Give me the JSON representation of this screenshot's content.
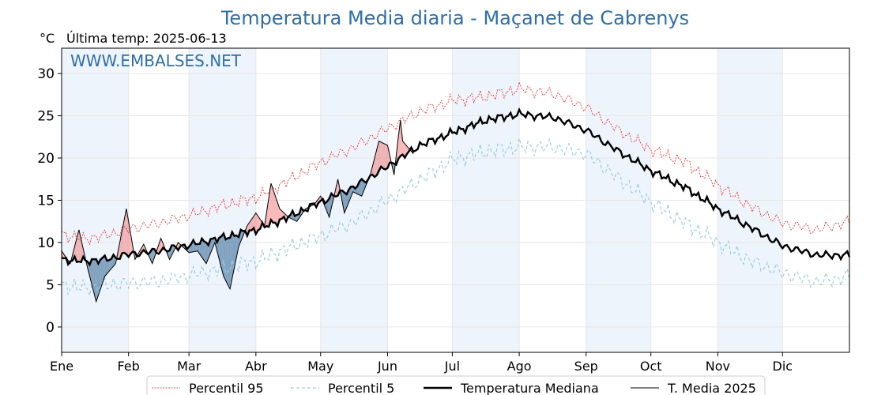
{
  "chart_data": {
    "type": "line",
    "title": "Temperatura Media diaria - Maçanet de Cabrenys",
    "unit_label": "°C",
    "subtitle": "Última temp: 2025-06-13",
    "watermark": "WWW.EMBALSES.NET",
    "ylim": [
      -3,
      33
    ],
    "xlim": [
      0,
      365
    ],
    "yticks": [
      0,
      5,
      10,
      15,
      20,
      25,
      30
    ],
    "months": [
      {
        "label": "Ene",
        "day": 0
      },
      {
        "label": "Feb",
        "day": 31
      },
      {
        "label": "Mar",
        "day": 59
      },
      {
        "label": "Abr",
        "day": 90
      },
      {
        "label": "May",
        "day": 120
      },
      {
        "label": "Jun",
        "day": 151
      },
      {
        "label": "Jul",
        "day": 181
      },
      {
        "label": "Ago",
        "day": 212
      },
      {
        "label": "Sep",
        "day": 243
      },
      {
        "label": "Oct",
        "day": 273
      },
      {
        "label": "Nov",
        "day": 304
      },
      {
        "label": "Dic",
        "day": 334
      }
    ],
    "grid": true,
    "legend_position": "bottom",
    "legend": [
      {
        "key": "p95",
        "label": "Percentil 95"
      },
      {
        "key": "p5",
        "label": "Percentil 5"
      },
      {
        "key": "median",
        "label": "Temperatura Mediana"
      },
      {
        "key": "t2025",
        "label": "T. Media 2025"
      }
    ],
    "colors": {
      "title": "#2e6fa7",
      "p95": "#e8201f",
      "p5": "#9ccde0",
      "median": "#000000",
      "t2025": "#000000",
      "above_fill": "#f08080",
      "below_fill": "#3a6c9a",
      "shade": "#eef4fb"
    },
    "series": [
      {
        "key": "median",
        "name": "Temperatura Mediana",
        "points": [
          [
            0,
            8.0
          ],
          [
            10,
            7.8
          ],
          [
            20,
            8.0
          ],
          [
            31,
            8.6
          ],
          [
            45,
            9.0
          ],
          [
            59,
            9.7
          ],
          [
            75,
            10.6
          ],
          [
            90,
            11.5
          ],
          [
            105,
            13.0
          ],
          [
            120,
            14.8
          ],
          [
            135,
            16.5
          ],
          [
            151,
            19.0
          ],
          [
            166,
            21.5
          ],
          [
            181,
            23.0
          ],
          [
            197,
            24.5
          ],
          [
            212,
            25.2
          ],
          [
            228,
            24.8
          ],
          [
            243,
            23.3
          ],
          [
            258,
            20.8
          ],
          [
            273,
            18.5
          ],
          [
            289,
            16.5
          ],
          [
            304,
            14.0
          ],
          [
            319,
            11.8
          ],
          [
            334,
            9.6
          ],
          [
            350,
            8.5
          ],
          [
            365,
            8.5
          ]
        ]
      },
      {
        "key": "p95",
        "name": "Percentil 95",
        "points": [
          [
            0,
            11.0
          ],
          [
            10,
            10.4
          ],
          [
            20,
            10.8
          ],
          [
            31,
            11.6
          ],
          [
            45,
            12.3
          ],
          [
            59,
            13.2
          ],
          [
            75,
            14.4
          ],
          [
            90,
            15.3
          ],
          [
            105,
            17.3
          ],
          [
            120,
            19.5
          ],
          [
            135,
            21.2
          ],
          [
            151,
            23.5
          ],
          [
            166,
            25.5
          ],
          [
            181,
            26.8
          ],
          [
            197,
            27.3
          ],
          [
            212,
            28.2
          ],
          [
            228,
            27.6
          ],
          [
            243,
            26.0
          ],
          [
            258,
            23.3
          ],
          [
            273,
            21.0
          ],
          [
            289,
            19.5
          ],
          [
            304,
            16.8
          ],
          [
            319,
            14.3
          ],
          [
            334,
            12.3
          ],
          [
            350,
            11.5
          ],
          [
            365,
            12.5
          ]
        ]
      },
      {
        "key": "p5",
        "name": "Percentil 5",
        "points": [
          [
            0,
            5.0
          ],
          [
            10,
            4.6
          ],
          [
            20,
            4.9
          ],
          [
            31,
            5.2
          ],
          [
            45,
            5.4
          ],
          [
            59,
            6.1
          ],
          [
            75,
            6.9
          ],
          [
            90,
            7.8
          ],
          [
            105,
            9.3
          ],
          [
            120,
            10.8
          ],
          [
            135,
            12.4
          ],
          [
            151,
            15.0
          ],
          [
            166,
            17.4
          ],
          [
            181,
            19.8
          ],
          [
            197,
            20.8
          ],
          [
            212,
            21.3
          ],
          [
            228,
            21.3
          ],
          [
            243,
            20.5
          ],
          [
            258,
            17.6
          ],
          [
            273,
            14.8
          ],
          [
            289,
            12.3
          ],
          [
            304,
            10.0
          ],
          [
            319,
            7.8
          ],
          [
            334,
            6.4
          ],
          [
            350,
            5.3
          ],
          [
            365,
            6.0
          ]
        ]
      },
      {
        "key": "t2025",
        "name": "T. Media 2025",
        "points": [
          [
            0,
            9.0
          ],
          [
            4,
            7.5
          ],
          [
            8,
            11.5
          ],
          [
            12,
            7.0
          ],
          [
            16,
            3.0
          ],
          [
            20,
            6.0
          ],
          [
            25,
            7.5
          ],
          [
            30,
            14.0
          ],
          [
            34,
            8.0
          ],
          [
            38,
            9.8
          ],
          [
            42,
            7.5
          ],
          [
            46,
            10.5
          ],
          [
            50,
            8.0
          ],
          [
            54,
            10.0
          ],
          [
            59,
            8.8
          ],
          [
            63,
            9.0
          ],
          [
            67,
            7.5
          ],
          [
            71,
            10.0
          ],
          [
            75,
            6.0
          ],
          [
            78,
            4.5
          ],
          [
            82,
            9.5
          ],
          [
            86,
            12.0
          ],
          [
            90,
            13.5
          ],
          [
            94,
            12.0
          ],
          [
            97,
            17.0
          ],
          [
            101,
            14.0
          ],
          [
            105,
            13.0
          ],
          [
            109,
            12.5
          ],
          [
            113,
            14.0
          ],
          [
            117,
            14.5
          ],
          [
            120,
            15.5
          ],
          [
            124,
            13.0
          ],
          [
            128,
            17.5
          ],
          [
            131,
            13.5
          ],
          [
            135,
            16.0
          ],
          [
            139,
            15.5
          ],
          [
            143,
            18.0
          ],
          [
            147,
            22.0
          ],
          [
            151,
            21.5
          ],
          [
            154,
            18.0
          ],
          [
            156,
            22.5
          ],
          [
            157,
            24.5
          ],
          [
            158,
            22.0
          ],
          [
            163,
            20.5
          ]
        ]
      }
    ]
  }
}
